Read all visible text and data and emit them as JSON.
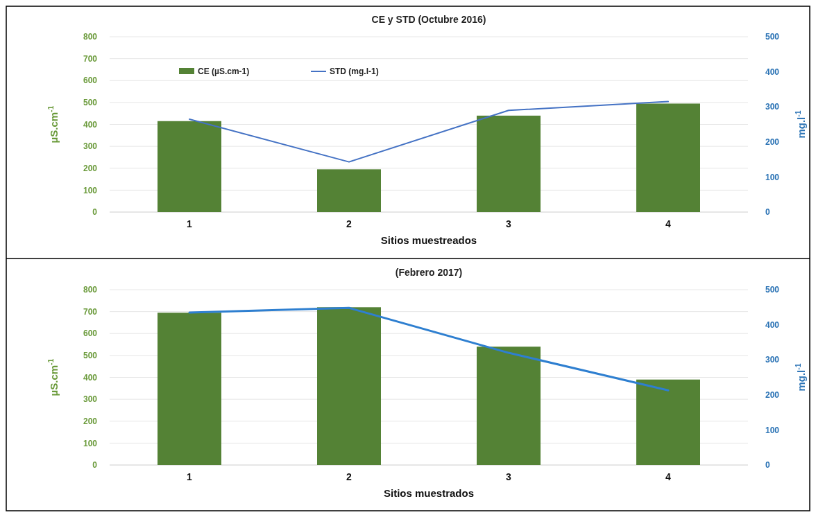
{
  "chart_data": [
    {
      "type": "bar",
      "title": "CE y STD (Octubre 2016)",
      "xlabel": "Sitios muestreados",
      "ylabel": "µS.cm$^{-1}$",
      "y2label": "mg.l$^{-1}$",
      "categories": [
        "1",
        "2",
        "3",
        "4"
      ],
      "series": [
        {
          "name": "CE (µS.cm-1)",
          "color": "#548235",
          "values": [
            415,
            195,
            440,
            495
          ]
        },
        {
          "name": "STD (mg.l-1)",
          "type": "line",
          "axis": "y2",
          "color": "#4472c4",
          "values": [
            265,
            143,
            290,
            315
          ]
        }
      ],
      "ylim": [
        0,
        800
      ],
      "yticks": [
        0,
        100,
        200,
        300,
        400,
        500,
        600,
        700,
        800
      ],
      "y2lim": [
        0,
        500
      ],
      "y2ticks": [
        0,
        100,
        200,
        300,
        400,
        500
      ],
      "grid": "y",
      "legend": "top left"
    },
    {
      "type": "bar",
      "title": "(Febrero 2017)",
      "xlabel": "Sitios muestrados",
      "ylabel": "µS.cm$^{-1}$",
      "y2label": "mg.l$^{-1}$",
      "categories": [
        "1",
        "2",
        "3",
        "4"
      ],
      "series": [
        {
          "color": "#548235",
          "values": [
            695,
            720,
            540,
            390
          ]
        },
        {
          "type": "line",
          "axis": "y2",
          "color": "#2e7fd0",
          "values": [
            435,
            448,
            320,
            213
          ]
        }
      ],
      "ylim": [
        0,
        800
      ],
      "yticks": [
        0,
        100,
        200,
        300,
        400,
        500,
        600,
        700,
        800
      ],
      "y2lim": [
        0,
        500
      ],
      "y2ticks": [
        0,
        100,
        200,
        300,
        400,
        500
      ],
      "grid": "y",
      "legend": false
    }
  ]
}
